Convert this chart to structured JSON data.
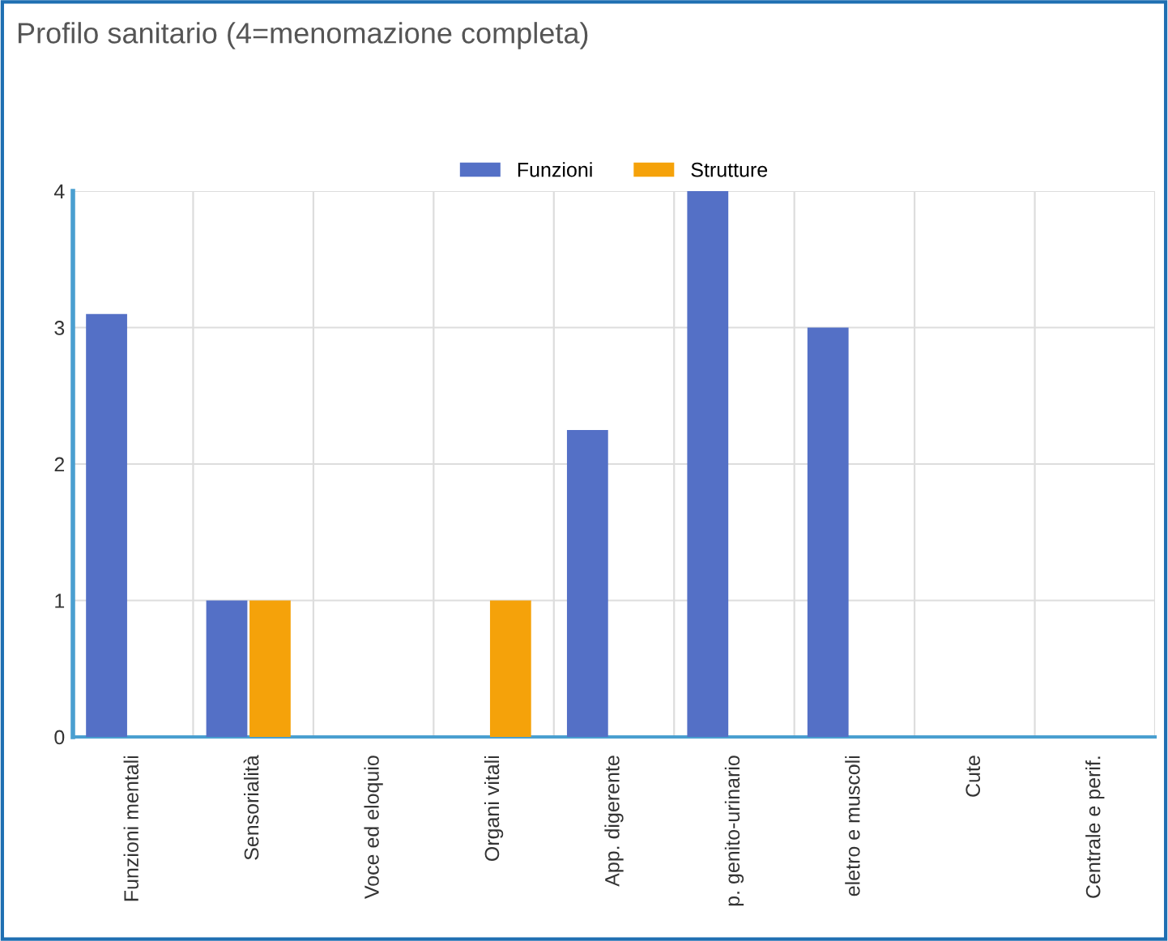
{
  "chart_data": {
    "type": "bar",
    "title": "Profilo sanitario (4=menomazione completa)",
    "categories": [
      "Funzioni mentali",
      "Sensorialità",
      "Voce ed eloquio",
      "Organi vitali",
      "App. digerente",
      "p. genito-urinario",
      "eletro e muscoli",
      "Cute",
      "Centrale e perif."
    ],
    "series": [
      {
        "name": "Funzioni",
        "color": "#5470c6",
        "values": [
          3.1,
          1,
          0,
          0,
          2.25,
          4,
          3,
          0,
          0
        ]
      },
      {
        "name": "Strutture",
        "color": "#f5a20a",
        "values": [
          0,
          1,
          0,
          1,
          0,
          0,
          0,
          0,
          0
        ]
      }
    ],
    "ylim": [
      0,
      4
    ],
    "yticks": [
      0,
      1,
      2,
      3,
      4
    ],
    "grid": true,
    "legend": "top"
  }
}
